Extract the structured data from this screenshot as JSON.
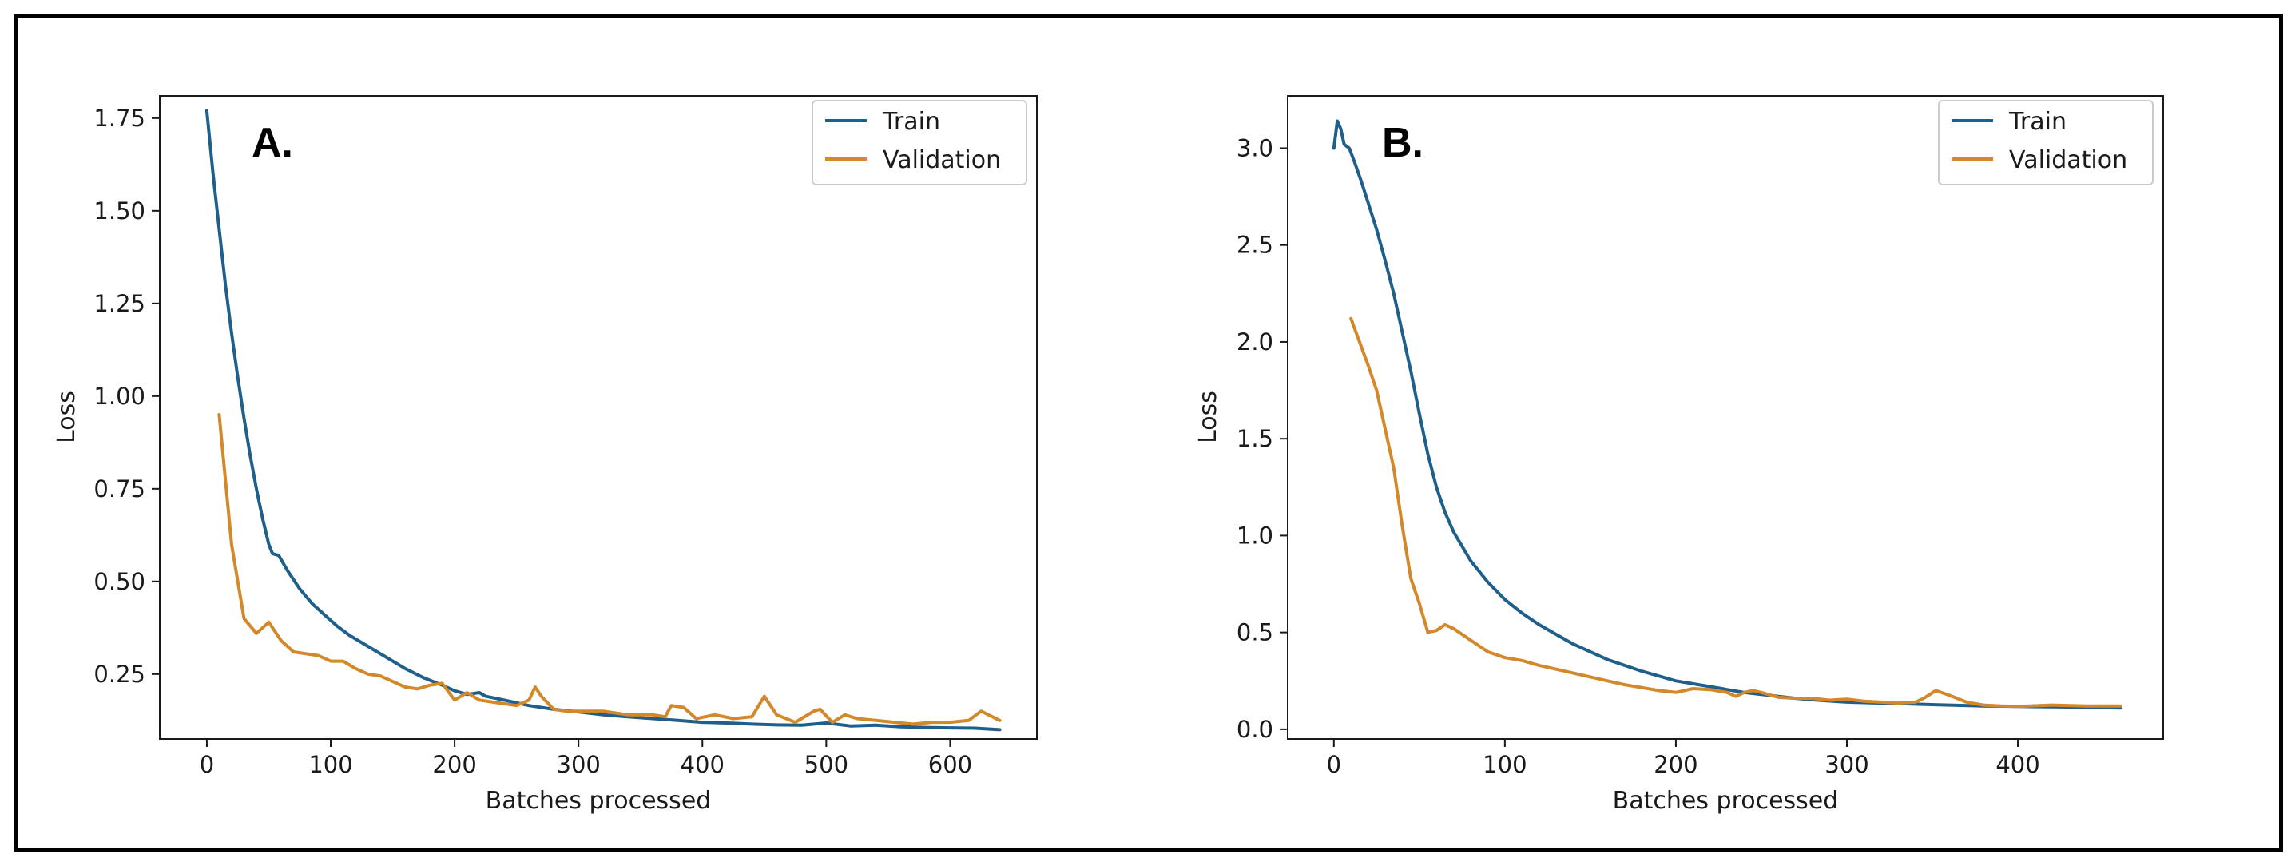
{
  "colors": {
    "train": "#1f5f8b",
    "validation": "#d3882a",
    "axis": "#1a1a1a",
    "legend_border": "#cccccc"
  },
  "chart_data": [
    {
      "type": "line",
      "panel_label": "A.",
      "xlabel": "Batches processed",
      "ylabel": "Loss",
      "xlim": [
        -38,
        670
      ],
      "ylim": [
        0.075,
        1.81
      ],
      "xticks": [
        0,
        100,
        200,
        300,
        400,
        500,
        600
      ],
      "xtick_labels": [
        "0",
        "100",
        "200",
        "300",
        "400",
        "500",
        "600"
      ],
      "yticks": [
        0.25,
        0.5,
        0.75,
        1.0,
        1.25,
        1.5,
        1.75
      ],
      "ytick_labels": [
        "0.25",
        "0.50",
        "0.75",
        "1.00",
        "1.25",
        "1.50",
        "1.75"
      ],
      "legend": {
        "position": "top-right",
        "entries": [
          "Train",
          "Validation"
        ]
      },
      "series": [
        {
          "name": "Train",
          "color_key": "train",
          "points": [
            [
              0,
              1.77
            ],
            [
              5,
              1.6
            ],
            [
              10,
              1.45
            ],
            [
              15,
              1.3
            ],
            [
              20,
              1.17
            ],
            [
              25,
              1.05
            ],
            [
              30,
              0.94
            ],
            [
              35,
              0.84
            ],
            [
              40,
              0.75
            ],
            [
              45,
              0.67
            ],
            [
              50,
              0.6
            ],
            [
              53,
              0.575
            ],
            [
              58,
              0.57
            ],
            [
              65,
              0.53
            ],
            [
              75,
              0.48
            ],
            [
              85,
              0.44
            ],
            [
              95,
              0.41
            ],
            [
              105,
              0.38
            ],
            [
              115,
              0.355
            ],
            [
              130,
              0.325
            ],
            [
              145,
              0.295
            ],
            [
              160,
              0.265
            ],
            [
              175,
              0.24
            ],
            [
              190,
              0.22
            ],
            [
              200,
              0.205
            ],
            [
              210,
              0.195
            ],
            [
              220,
              0.2
            ],
            [
              225,
              0.19
            ],
            [
              240,
              0.18
            ],
            [
              260,
              0.165
            ],
            [
              280,
              0.155
            ],
            [
              300,
              0.148
            ],
            [
              320,
              0.14
            ],
            [
              340,
              0.135
            ],
            [
              360,
              0.13
            ],
            [
              380,
              0.125
            ],
            [
              400,
              0.12
            ],
            [
              420,
              0.118
            ],
            [
              440,
              0.115
            ],
            [
              460,
              0.113
            ],
            [
              480,
              0.112
            ],
            [
              500,
              0.118
            ],
            [
              520,
              0.11
            ],
            [
              540,
              0.112
            ],
            [
              560,
              0.108
            ],
            [
              580,
              0.106
            ],
            [
              600,
              0.105
            ],
            [
              620,
              0.104
            ],
            [
              640,
              0.1
            ]
          ]
        },
        {
          "name": "Validation",
          "color_key": "validation",
          "points": [
            [
              10,
              0.95
            ],
            [
              20,
              0.6
            ],
            [
              30,
              0.4
            ],
            [
              40,
              0.36
            ],
            [
              50,
              0.39
            ],
            [
              60,
              0.34
            ],
            [
              70,
              0.31
            ],
            [
              80,
              0.305
            ],
            [
              90,
              0.3
            ],
            [
              100,
              0.285
            ],
            [
              110,
              0.285
            ],
            [
              120,
              0.265
            ],
            [
              130,
              0.25
            ],
            [
              140,
              0.245
            ],
            [
              150,
              0.23
            ],
            [
              160,
              0.215
            ],
            [
              170,
              0.21
            ],
            [
              180,
              0.22
            ],
            [
              190,
              0.225
            ],
            [
              200,
              0.18
            ],
            [
              210,
              0.2
            ],
            [
              220,
              0.18
            ],
            [
              230,
              0.175
            ],
            [
              240,
              0.17
            ],
            [
              250,
              0.165
            ],
            [
              260,
              0.18
            ],
            [
              265,
              0.215
            ],
            [
              270,
              0.19
            ],
            [
              280,
              0.155
            ],
            [
              290,
              0.15
            ],
            [
              300,
              0.15
            ],
            [
              320,
              0.15
            ],
            [
              340,
              0.14
            ],
            [
              360,
              0.14
            ],
            [
              370,
              0.135
            ],
            [
              375,
              0.165
            ],
            [
              385,
              0.16
            ],
            [
              395,
              0.13
            ],
            [
              410,
              0.14
            ],
            [
              425,
              0.13
            ],
            [
              440,
              0.135
            ],
            [
              450,
              0.19
            ],
            [
              460,
              0.14
            ],
            [
              475,
              0.12
            ],
            [
              490,
              0.15
            ],
            [
              495,
              0.155
            ],
            [
              505,
              0.12
            ],
            [
              515,
              0.14
            ],
            [
              525,
              0.13
            ],
            [
              540,
              0.125
            ],
            [
              555,
              0.12
            ],
            [
              570,
              0.115
            ],
            [
              585,
              0.12
            ],
            [
              600,
              0.12
            ],
            [
              615,
              0.125
            ],
            [
              625,
              0.15
            ],
            [
              640,
              0.125
            ]
          ]
        }
      ]
    },
    {
      "type": "line",
      "panel_label": "B.",
      "xlabel": "Batches processed",
      "ylabel": "Loss",
      "xlim": [
        -27,
        485
      ],
      "ylim": [
        -0.05,
        3.27
      ],
      "xticks": [
        0,
        100,
        200,
        300,
        400
      ],
      "xtick_labels": [
        "0",
        "100",
        "200",
        "300",
        "400"
      ],
      "yticks": [
        0.0,
        0.5,
        1.0,
        1.5,
        2.0,
        2.5,
        3.0
      ],
      "ytick_labels": [
        "0.0",
        "0.5",
        "1.0",
        "1.5",
        "2.0",
        "2.5",
        "3.0"
      ],
      "legend": {
        "position": "top-right",
        "entries": [
          "Train",
          "Validation"
        ]
      },
      "series": [
        {
          "name": "Train",
          "color_key": "train",
          "points": [
            [
              0,
              3.0
            ],
            [
              2,
              3.14
            ],
            [
              4,
              3.1
            ],
            [
              6,
              3.02
            ],
            [
              9,
              3.0
            ],
            [
              12,
              2.93
            ],
            [
              16,
              2.83
            ],
            [
              20,
              2.72
            ],
            [
              25,
              2.58
            ],
            [
              30,
              2.42
            ],
            [
              35,
              2.25
            ],
            [
              40,
              2.05
            ],
            [
              45,
              1.85
            ],
            [
              50,
              1.63
            ],
            [
              55,
              1.42
            ],
            [
              60,
              1.25
            ],
            [
              65,
              1.12
            ],
            [
              70,
              1.02
            ],
            [
              80,
              0.87
            ],
            [
              90,
              0.76
            ],
            [
              100,
              0.67
            ],
            [
              110,
              0.6
            ],
            [
              120,
              0.54
            ],
            [
              130,
              0.49
            ],
            [
              140,
              0.44
            ],
            [
              150,
              0.4
            ],
            [
              160,
              0.36
            ],
            [
              170,
              0.33
            ],
            [
              180,
              0.3
            ],
            [
              190,
              0.275
            ],
            [
              200,
              0.25
            ],
            [
              210,
              0.235
            ],
            [
              220,
              0.22
            ],
            [
              230,
              0.205
            ],
            [
              240,
              0.19
            ],
            [
              250,
              0.18
            ],
            [
              260,
              0.17
            ],
            [
              270,
              0.16
            ],
            [
              280,
              0.152
            ],
            [
              290,
              0.146
            ],
            [
              300,
              0.14
            ],
            [
              320,
              0.135
            ],
            [
              340,
              0.13
            ],
            [
              360,
              0.125
            ],
            [
              380,
              0.12
            ],
            [
              400,
              0.118
            ],
            [
              420,
              0.116
            ],
            [
              440,
              0.114
            ],
            [
              460,
              0.11
            ]
          ]
        },
        {
          "name": "Validation",
          "color_key": "validation",
          "points": [
            [
              10,
              2.12
            ],
            [
              15,
              2.0
            ],
            [
              20,
              1.88
            ],
            [
              25,
              1.75
            ],
            [
              30,
              1.55
            ],
            [
              35,
              1.35
            ],
            [
              40,
              1.05
            ],
            [
              45,
              0.78
            ],
            [
              50,
              0.65
            ],
            [
              55,
              0.5
            ],
            [
              60,
              0.51
            ],
            [
              65,
              0.54
            ],
            [
              70,
              0.52
            ],
            [
              75,
              0.49
            ],
            [
              80,
              0.46
            ],
            [
              90,
              0.4
            ],
            [
              100,
              0.37
            ],
            [
              110,
              0.355
            ],
            [
              120,
              0.33
            ],
            [
              130,
              0.31
            ],
            [
              140,
              0.29
            ],
            [
              150,
              0.27
            ],
            [
              160,
              0.25
            ],
            [
              170,
              0.23
            ],
            [
              180,
              0.215
            ],
            [
              190,
              0.2
            ],
            [
              200,
              0.19
            ],
            [
              205,
              0.2
            ],
            [
              210,
              0.21
            ],
            [
              220,
              0.205
            ],
            [
              230,
              0.19
            ],
            [
              235,
              0.17
            ],
            [
              240,
              0.19
            ],
            [
              245,
              0.2
            ],
            [
              250,
              0.19
            ],
            [
              260,
              0.165
            ],
            [
              270,
              0.16
            ],
            [
              280,
              0.16
            ],
            [
              290,
              0.15
            ],
            [
              300,
              0.155
            ],
            [
              310,
              0.145
            ],
            [
              320,
              0.14
            ],
            [
              330,
              0.135
            ],
            [
              340,
              0.14
            ],
            [
              345,
              0.16
            ],
            [
              352,
              0.2
            ],
            [
              360,
              0.175
            ],
            [
              370,
              0.14
            ],
            [
              380,
              0.125
            ],
            [
              390,
              0.12
            ],
            [
              400,
              0.118
            ],
            [
              420,
              0.125
            ],
            [
              440,
              0.12
            ],
            [
              460,
              0.12
            ]
          ]
        }
      ]
    }
  ]
}
